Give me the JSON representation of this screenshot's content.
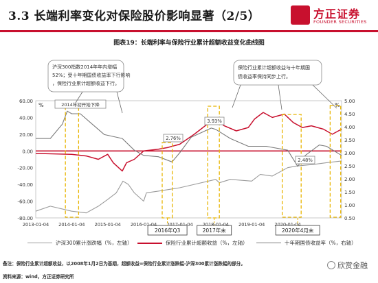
{
  "slide": {
    "title": "3.3 长端利率变化对保险股价影响显著（2/5）",
    "logo_cn": "方正证券",
    "logo_en": "FOUNDER SECURITIES"
  },
  "chart_data": {
    "type": "line",
    "title": "图表19：长端利率与保险行业累计超额收益变化曲线图",
    "x_start": "2013-01-04",
    "x_end": "2021-07-04",
    "x_ticks": [
      "2013-01-04",
      "2014-01-04",
      "2015-01-04",
      "2016-01-04",
      "2017-01-04",
      "2018-01-04",
      "2019-01-04",
      "2020-01-04"
    ],
    "y_left": {
      "unit": "%",
      "min": -80,
      "max": 60,
      "ticks": [
        "60.00",
        "40.00",
        "20.00",
        "0.00",
        "-20.00",
        "-40.00",
        "-60.00",
        "-80.00"
      ]
    },
    "y_right": {
      "unit": "%",
      "min": 0.5,
      "max": 5.0,
      "ticks": [
        "5.00",
        "4.50",
        "4.00",
        "3.50",
        "3.00",
        "2.50",
        "2.00",
        "1.50",
        "1.00",
        "0.50"
      ]
    },
    "series": [
      {
        "name": "沪深300累计涨跌幅（%，左轴）",
        "color": "#9a9a9a",
        "axis": "left",
        "points": [
          [
            "2013-01-04",
            -72
          ],
          [
            "2013-06-01",
            -66
          ],
          [
            "2014-01-04",
            -72
          ],
          [
            "2014-06-01",
            -74
          ],
          [
            "2014-10-01",
            -66
          ],
          [
            "2015-01-04",
            -58
          ],
          [
            "2015-04-01",
            -50
          ],
          [
            "2015-06-08",
            -36
          ],
          [
            "2015-08-01",
            -40
          ],
          [
            "2015-10-01",
            -50
          ],
          [
            "2016-01-04",
            -60
          ],
          [
            "2016-02-01",
            -50
          ],
          [
            "2016-06-01",
            -48
          ],
          [
            "2017-01-04",
            -44
          ],
          [
            "2017-06-01",
            -40
          ],
          [
            "2018-01-04",
            -34
          ],
          [
            "2018-02-10",
            -38
          ],
          [
            "2018-06-01",
            -34
          ],
          [
            "2019-01-04",
            -36
          ],
          [
            "2019-04-01",
            -28
          ],
          [
            "2019-08-01",
            -30
          ],
          [
            "2020-01-04",
            -20
          ],
          [
            "2020-04-01",
            -18
          ],
          [
            "2020-10-01",
            -16
          ],
          [
            "2021-02-01",
            -14
          ],
          [
            "2021-07-04",
            -12
          ]
        ]
      },
      {
        "name": "保险行业累计超额收益（%，左轴）",
        "color": "#c8102e",
        "axis": "left",
        "points": [
          [
            "2013-01-04",
            -3
          ],
          [
            "2014-01-04",
            -4
          ],
          [
            "2014-06-01",
            -6
          ],
          [
            "2014-10-01",
            -10
          ],
          [
            "2015-01-04",
            -4
          ],
          [
            "2015-03-01",
            -14
          ],
          [
            "2015-06-01",
            -24
          ],
          [
            "2015-07-15",
            -14
          ],
          [
            "2015-10-01",
            -10
          ],
          [
            "2016-01-04",
            0
          ],
          [
            "2016-06-01",
            2
          ],
          [
            "2016-09-01",
            4
          ],
          [
            "2017-01-04",
            8
          ],
          [
            "2017-06-01",
            20
          ],
          [
            "2017-11-01",
            34
          ],
          [
            "2018-01-04",
            38
          ],
          [
            "2018-04-01",
            30
          ],
          [
            "2018-08-01",
            24
          ],
          [
            "2018-12-01",
            28
          ],
          [
            "2019-02-01",
            38
          ],
          [
            "2019-05-01",
            46
          ],
          [
            "2019-08-01",
            40
          ],
          [
            "2019-12-01",
            44
          ],
          [
            "2020-03-01",
            34
          ],
          [
            "2020-06-01",
            28
          ],
          [
            "2020-09-01",
            30
          ],
          [
            "2021-01-01",
            26
          ],
          [
            "2021-04-01",
            20
          ],
          [
            "2021-07-04",
            26
          ]
        ]
      },
      {
        "name": "十年期国债收益率（%，右轴）",
        "color": "#7a7a7a",
        "axis": "right",
        "points": [
          [
            "2013-01-04",
            3.55
          ],
          [
            "2013-06-01",
            3.55
          ],
          [
            "2013-10-01",
            4.1
          ],
          [
            "2013-11-20",
            4.6
          ],
          [
            "2014-01-04",
            4.5
          ],
          [
            "2014-04-01",
            4.5
          ],
          [
            "2014-07-01",
            4.2
          ],
          [
            "2014-12-01",
            3.7
          ],
          [
            "2015-06-01",
            3.55
          ],
          [
            "2015-10-01",
            3.1
          ],
          [
            "2016-01-04",
            2.9
          ],
          [
            "2016-06-01",
            2.85
          ],
          [
            "2016-10-18",
            2.65
          ],
          [
            "2017-01-04",
            3.0
          ],
          [
            "2017-05-01",
            3.6
          ],
          [
            "2017-11-20",
            3.95
          ],
          [
            "2018-01-04",
            3.9
          ],
          [
            "2018-06-01",
            3.55
          ],
          [
            "2018-12-01",
            3.25
          ],
          [
            "2019-06-01",
            3.25
          ],
          [
            "2020-01-04",
            3.1
          ],
          [
            "2020-04-15",
            2.48
          ],
          [
            "2020-07-01",
            2.9
          ],
          [
            "2020-11-20",
            3.3
          ],
          [
            "2021-02-01",
            3.25
          ],
          [
            "2021-07-04",
            2.9
          ]
        ]
      }
    ],
    "zero_line_color": "#c8102e",
    "annotations": [
      {
        "text": "2014年初开始下降"
      },
      {
        "text": "沪深300指数2014年年内增幅52%；受十年期国债收益率下行影响，保险行业累计超额收益下行。"
      },
      {
        "text": "保险行业累计超额收益与十年期国债收益率保持同步上行。"
      },
      {
        "text": "3.93%"
      },
      {
        "text": "2.76%"
      },
      {
        "text": "2.48%"
      },
      {
        "text": "2016年Q3"
      },
      {
        "text": "2017年末"
      },
      {
        "text": "2020年4月末"
      }
    ]
  },
  "legend": {
    "item1": "沪深300累计涨跌幅（%，左轴）",
    "item2": "保险行业累计超额收益（%，左轴）",
    "item3": "十年期国债收益率（%，右轴）"
  },
  "footer": {
    "note": "备注：保险行业累计超额收益，以2008年1月2日为基期，超额收益=保险行业累计涨跌幅-沪深300累计涨跌幅的部分。",
    "source": "资料来源：wind，方正证券研究所",
    "watermark": "欣赏金融"
  }
}
